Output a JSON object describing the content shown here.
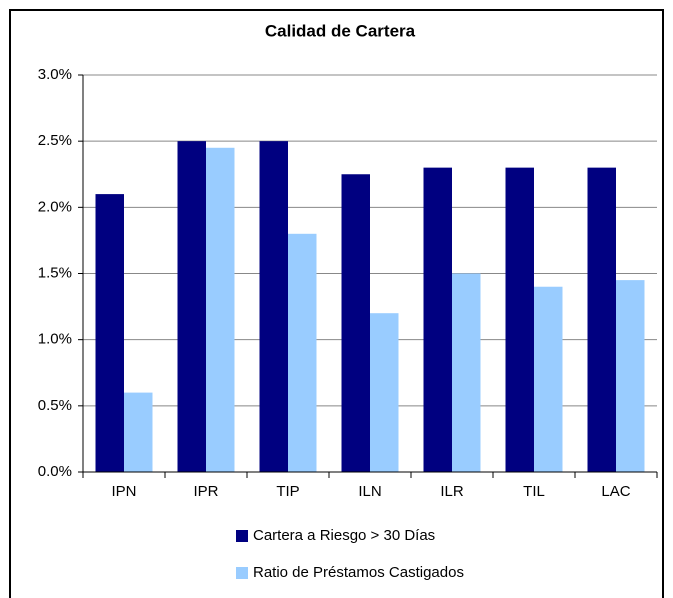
{
  "chart_data": {
    "type": "bar",
    "title": "Calidad de Cartera",
    "categories": [
      "IPN",
      "IPR",
      "TIP",
      "ILN",
      "ILR",
      "TIL",
      "LAC"
    ],
    "series": [
      {
        "name": "Cartera a Riesgo >  30 Días",
        "color": "#000080",
        "values": [
          2.1,
          2.5,
          2.5,
          2.25,
          2.3,
          2.3,
          2.3
        ]
      },
      {
        "name": "Ratio de Préstamos Castigados",
        "color": "#99ccff",
        "values": [
          0.6,
          2.45,
          1.8,
          1.2,
          1.5,
          1.4,
          1.45
        ]
      }
    ],
    "ylim": [
      0,
      3
    ],
    "yticks": [
      {
        "value": 0,
        "label": "0.0%"
      },
      {
        "value": 0.5,
        "label": "0.5%"
      },
      {
        "value": 1,
        "label": "1.0%"
      },
      {
        "value": 1.5,
        "label": "1.5%"
      },
      {
        "value": 2,
        "label": "2.0%"
      },
      {
        "value": 2.5,
        "label": "2.5%"
      },
      {
        "value": 3,
        "label": "3.0%"
      }
    ],
    "grid": true
  }
}
